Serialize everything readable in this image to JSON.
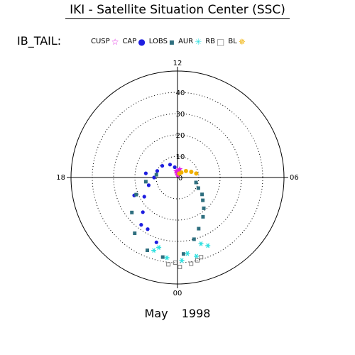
{
  "title": "IKI - Satellite Situation Center (SSC)",
  "legend": {
    "title": "IB_TAIL:",
    "items": [
      {
        "label": "CUSP",
        "symbol": "☆",
        "color": "#e020e0"
      },
      {
        "label": "CAP",
        "symbol": "●",
        "color": "#1e1ee0"
      },
      {
        "label": "LOBS",
        "symbol": "▪",
        "color": "#2f6f7f"
      },
      {
        "label": "AUR",
        "symbol": "✳",
        "color": "#30e0e0"
      },
      {
        "label": "RB",
        "symbol": "□",
        "color": "#808080"
      },
      {
        "label": "BL",
        "symbol": "✵",
        "color": "#f0b000"
      }
    ]
  },
  "footer": "May 1998",
  "chart_data": {
    "type": "scatter",
    "coordinate_system": "polar (magnetic local time vs. colatitude)",
    "hour_labels": [
      "12",
      "18",
      "06",
      "00"
    ],
    "radial_ticks": [
      "0",
      "10",
      "20",
      "30",
      "40"
    ],
    "rlim": [
      0,
      50
    ],
    "grid": true,
    "legend_placement": "top",
    "series": [
      {
        "name": "CUSP",
        "color": "#e020e0",
        "points": [
          [
            11.2,
            2
          ],
          [
            11.6,
            3
          ],
          [
            12.0,
            3
          ],
          [
            12.5,
            2
          ],
          [
            11.0,
            4
          ],
          [
            12.8,
            3
          ],
          [
            11.8,
            1
          ]
        ]
      },
      {
        "name": "CAP",
        "color": "#1e1ee0",
        "points": [
          [
            14.0,
            7
          ],
          [
            15.5,
            9
          ],
          [
            16.8,
            10
          ],
          [
            18.0,
            11
          ],
          [
            19.0,
            14
          ],
          [
            20.0,
            18
          ],
          [
            21.0,
            23
          ],
          [
            22.0,
            28
          ],
          [
            22.8,
            32
          ],
          [
            13.0,
            5
          ],
          [
            17.5,
            15
          ],
          [
            19.5,
            22
          ],
          [
            21.5,
            28
          ]
        ]
      },
      {
        "name": "LOBS",
        "color": "#2f6f7f",
        "points": [
          [
            17.5,
            10
          ],
          [
            18.5,
            15
          ],
          [
            19.5,
            21
          ],
          [
            20.5,
            27
          ],
          [
            21.5,
            33
          ],
          [
            22.5,
            37
          ],
          [
            23.3,
            38
          ],
          [
            1.0,
            30
          ],
          [
            2.2,
            22
          ],
          [
            3.2,
            16
          ],
          [
            4.2,
            11
          ],
          [
            5.0,
            9
          ],
          [
            0.3,
            36
          ],
          [
            1.5,
            26
          ],
          [
            2.7,
            19
          ],
          [
            3.7,
            14
          ]
        ]
      },
      {
        "name": "AUR",
        "color": "#30e0e0",
        "points": [
          [
            22.8,
            36
          ],
          [
            23.5,
            38
          ],
          [
            0.2,
            39
          ],
          [
            0.9,
            38
          ],
          [
            1.6,
            35
          ],
          [
            23.0,
            34
          ],
          [
            0.5,
            36
          ],
          [
            1.3,
            33
          ]
        ]
      },
      {
        "name": "RB",
        "color": "#808080",
        "points": [
          [
            23.6,
            41
          ],
          [
            0.1,
            42
          ],
          [
            0.6,
            41
          ],
          [
            1.1,
            39
          ],
          [
            23.9,
            40
          ],
          [
            0.9,
            40
          ]
        ]
      },
      {
        "name": "BL",
        "color": "#f0b000",
        "points": [
          [
            9.5,
            3
          ],
          [
            8.5,
            5
          ],
          [
            7.5,
            7
          ],
          [
            6.8,
            9
          ],
          [
            10.5,
            2
          ]
        ]
      }
    ]
  }
}
